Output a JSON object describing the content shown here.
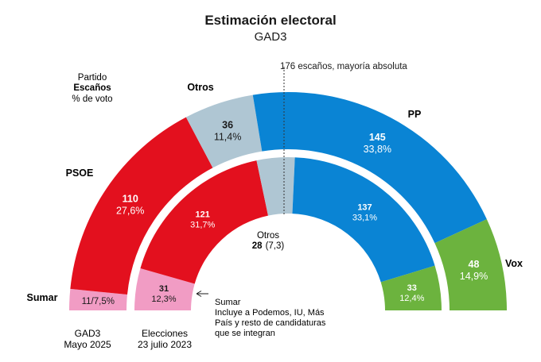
{
  "chart_data": {
    "type": "parliament-semicircle",
    "title": "Estimación electoral",
    "subtitle": "GAD3",
    "majority_label": "176 escaños, mayoría absoluta",
    "legend_key": {
      "line1": "Partido",
      "line2": "Escaños",
      "line3": "% de voto"
    },
    "total_seats": 350,
    "series": [
      {
        "name": "GAD3 Mayo 2025",
        "caption": [
          "GAD3",
          "Mayo 2025"
        ],
        "parties": [
          {
            "party": "Sumar",
            "seats": 11,
            "vote": "7,5%",
            "label": "11/7,5%",
            "color": "#f19cc4"
          },
          {
            "party": "PSOE",
            "seats": 110,
            "vote": "27,6%",
            "color": "#e3101e"
          },
          {
            "party": "Otros",
            "seats": 36,
            "vote": "11,4%",
            "color": "#afc6d3"
          },
          {
            "party": "PP",
            "seats": 145,
            "vote": "33,8%",
            "color": "#0a84d4"
          },
          {
            "party": "Vox",
            "seats": 48,
            "vote": "14,9%",
            "color": "#6cb33e"
          }
        ]
      },
      {
        "name": "Elecciones 23 julio 2023",
        "caption": [
          "Elecciones",
          "23 julio 2023"
        ],
        "parties": [
          {
            "party": "Sumar",
            "seats": 31,
            "vote": "12,3%",
            "color": "#f19cc4"
          },
          {
            "party": "PSOE",
            "seats": 121,
            "vote": "31,7%",
            "color": "#e3101e"
          },
          {
            "party": "Otros",
            "seats": 28,
            "vote": "7,3",
            "color": "#afc6d3"
          },
          {
            "party": "PP",
            "seats": 137,
            "vote": "33,1%",
            "color": "#0a84d4"
          },
          {
            "party": "Vox",
            "seats": 33,
            "vote": "12,4%",
            "color": "#6cb33e"
          }
        ]
      }
    ],
    "outer_party_labels": {
      "sumar": "Sumar",
      "psoe": "PSOE",
      "otros": "Otros",
      "pp": "PP",
      "vox": "Vox"
    },
    "otros_inner_label": {
      "line1": "Otros",
      "seats": "28",
      "vote": "(7,3)"
    },
    "sumar_note": [
      "Sumar",
      "Incluye a Podemos, IU, Más",
      "País y resto de candidaturas",
      "que se integran"
    ]
  }
}
